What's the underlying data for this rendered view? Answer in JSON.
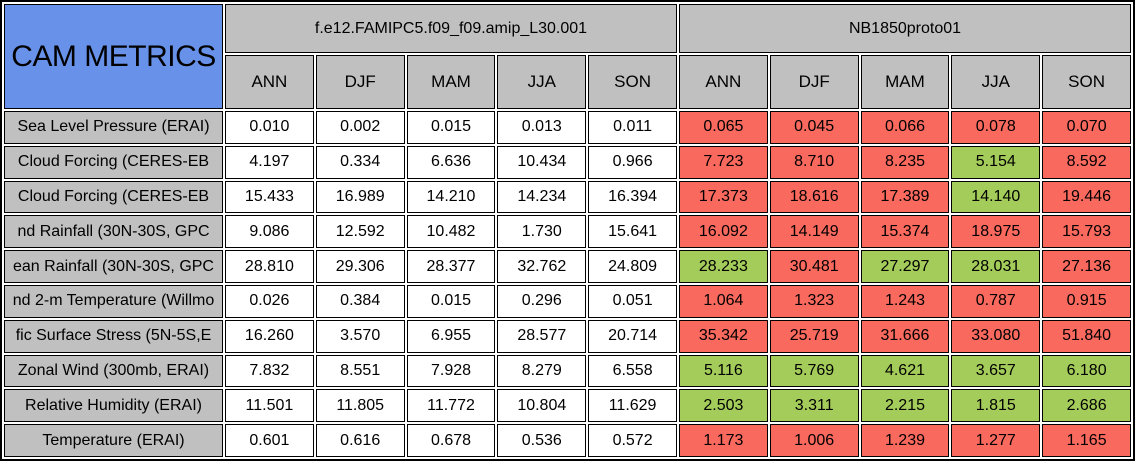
{
  "colors": {
    "title_bg": "#6892ea",
    "header_bg": "#c0c0c0",
    "neutral_cell_bg": "#ffffff",
    "worse_cell_bg": "#f9695e",
    "better_cell_bg": "#a4cc5a",
    "border": "#000000"
  },
  "chart_data": {
    "type": "table",
    "title": "CAM METRICS",
    "models": [
      {
        "name": "f.e12.FAMIPC5.f09_f09.amip_L30.001",
        "seasons": [
          "ANN",
          "DJF",
          "MAM",
          "JJA",
          "SON"
        ]
      },
      {
        "name": "NB1850proto01",
        "seasons": [
          "ANN",
          "DJF",
          "MAM",
          "JJA",
          "SON"
        ]
      }
    ],
    "rows": [
      {
        "label": "Sea Level Pressure (ERAI)",
        "model1": [
          "0.010",
          "0.002",
          "0.015",
          "0.013",
          "0.011"
        ],
        "model2": [
          "0.065",
          "0.045",
          "0.066",
          "0.078",
          "0.070"
        ],
        "model2_status": [
          "worse",
          "worse",
          "worse",
          "worse",
          "worse"
        ]
      },
      {
        "label": "Cloud Forcing (CERES-EB",
        "model1": [
          "4.197",
          "0.334",
          "6.636",
          "10.434",
          "0.966"
        ],
        "model2": [
          "7.723",
          "8.710",
          "8.235",
          "5.154",
          "8.592"
        ],
        "model2_status": [
          "worse",
          "worse",
          "worse",
          "better",
          "worse"
        ]
      },
      {
        "label": "Cloud Forcing (CERES-EB",
        "model1": [
          "15.433",
          "16.989",
          "14.210",
          "14.234",
          "16.394"
        ],
        "model2": [
          "17.373",
          "18.616",
          "17.389",
          "14.140",
          "19.446"
        ],
        "model2_status": [
          "worse",
          "worse",
          "worse",
          "better",
          "worse"
        ]
      },
      {
        "label": "nd Rainfall (30N-30S, GPC",
        "model1": [
          "9.086",
          "12.592",
          "10.482",
          "1.730",
          "15.641"
        ],
        "model2": [
          "16.092",
          "14.149",
          "15.374",
          "18.975",
          "15.793"
        ],
        "model2_status": [
          "worse",
          "worse",
          "worse",
          "worse",
          "worse"
        ]
      },
      {
        "label": "ean Rainfall (30N-30S, GPC",
        "model1": [
          "28.810",
          "29.306",
          "28.377",
          "32.762",
          "24.809"
        ],
        "model2": [
          "28.233",
          "30.481",
          "27.297",
          "28.031",
          "27.136"
        ],
        "model2_status": [
          "better",
          "worse",
          "better",
          "better",
          "worse"
        ]
      },
      {
        "label": "nd 2-m Temperature (Willmo",
        "model1": [
          "0.026",
          "0.384",
          "0.015",
          "0.296",
          "0.051"
        ],
        "model2": [
          "1.064",
          "1.323",
          "1.243",
          "0.787",
          "0.915"
        ],
        "model2_status": [
          "worse",
          "worse",
          "worse",
          "worse",
          "worse"
        ]
      },
      {
        "label": "fic Surface Stress (5N-5S,E",
        "model1": [
          "16.260",
          "3.570",
          "6.955",
          "28.577",
          "20.714"
        ],
        "model2": [
          "35.342",
          "25.719",
          "31.666",
          "33.080",
          "51.840"
        ],
        "model2_status": [
          "worse",
          "worse",
          "worse",
          "worse",
          "worse"
        ]
      },
      {
        "label": "Zonal Wind (300mb, ERAI)",
        "model1": [
          "7.832",
          "8.551",
          "7.928",
          "8.279",
          "6.558"
        ],
        "model2": [
          "5.116",
          "5.769",
          "4.621",
          "3.657",
          "6.180"
        ],
        "model2_status": [
          "better",
          "better",
          "better",
          "better",
          "better"
        ]
      },
      {
        "label": "Relative Humidity (ERAI)",
        "model1": [
          "11.501",
          "11.805",
          "11.772",
          "10.804",
          "11.629"
        ],
        "model2": [
          "2.503",
          "3.311",
          "2.215",
          "1.815",
          "2.686"
        ],
        "model2_status": [
          "better",
          "better",
          "better",
          "better",
          "better"
        ]
      },
      {
        "label": "Temperature (ERAI)",
        "model1": [
          "0.601",
          "0.616",
          "0.678",
          "0.536",
          "0.572"
        ],
        "model2": [
          "1.173",
          "1.006",
          "1.239",
          "1.277",
          "1.165"
        ],
        "model2_status": [
          "worse",
          "worse",
          "worse",
          "worse",
          "worse"
        ]
      }
    ]
  }
}
